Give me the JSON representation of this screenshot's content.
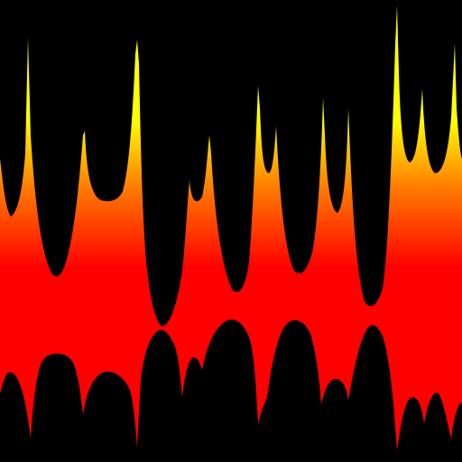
{
  "image": {
    "kind": "abstract flame-like band",
    "background_color": "#000000",
    "gradient_colors": {
      "top": "#ffff00",
      "middle": "#ff8000",
      "bottom": "#ff0000"
    }
  }
}
